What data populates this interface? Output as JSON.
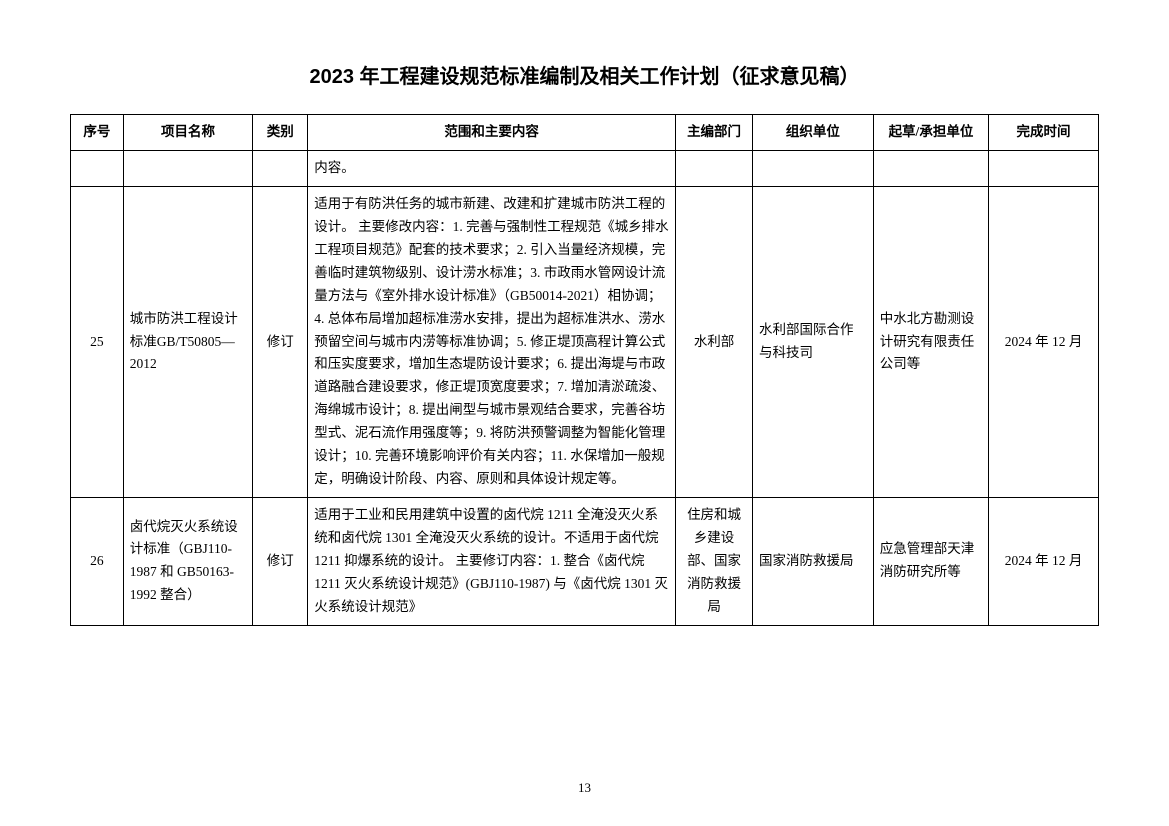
{
  "title": "2023 年工程建设规范标准编制及相关工作计划（征求意见稿）",
  "page_number": "13",
  "columns": [
    "序号",
    "项目名称",
    "类别",
    "范围和主要内容",
    "主编部门",
    "组织单位",
    "起草/承担单位",
    "完成时间"
  ],
  "rows": [
    {
      "seq": "",
      "name": "",
      "cat": "",
      "scope": "内容。",
      "dept": "",
      "org": "",
      "draft": "",
      "done": ""
    },
    {
      "seq": "25",
      "name": "城市防洪工程设计标准GB/T50805—2012",
      "cat": "修订",
      "scope": "适用于有防洪任务的城市新建、改建和扩建城市防洪工程的设计。\n主要修改内容：1. 完善与强制性工程规范《城乡排水工程项目规范》配套的技术要求；2. 引入当量经济规模，完善临时建筑物级别、设计涝水标准；3. 市政雨水管网设计流量方法与《室外排水设计标准》（GB50014-2021）相协调；4. 总体布局增加超标准涝水安排，提出为超标准洪水、涝水预留空间与城市内涝等标准协调；5. 修正堤顶高程计算公式和压实度要求，增加生态堤防设计要求；6. 提出海堤与市政道路融合建设要求，修正堤顶宽度要求；7. 增加清淤疏浚、海绵城市设计；8. 提出闸型与城市景观结合要求，完善谷坊型式、泥石流作用强度等；9. 将防洪预警调整为智能化管理设计；10. 完善环境影响评价有关内容；11. 水保增加一般规定，明确设计阶段、内容、原则和具体设计规定等。",
      "dept": "水利部",
      "org": "水利部国际合作与科技司",
      "draft": "中水北方勘测设计研究有限责任公司等",
      "done": "2024 年 12 月"
    },
    {
      "seq": "26",
      "name": "卤代烷灭火系统设计标准（GBJ110-1987 和 GB50163-1992 整合）",
      "cat": "修订",
      "scope": "适用于工业和民用建筑中设置的卤代烷 1211 全淹没灭火系统和卤代烷 1301 全淹没灭火系统的设计。不适用于卤代烷 1211 抑爆系统的设计。\n主要修订内容：1. 整合《卤代烷 1211 灭火系统设计规范》(GBJ110-1987) 与《卤代烷 1301 灭火系统设计规范》",
      "dept": "住房和城乡建设部、国家消防救援局",
      "org": "国家消防救援局",
      "draft": "应急管理部天津消防研究所等",
      "done": "2024 年 12 月"
    }
  ]
}
